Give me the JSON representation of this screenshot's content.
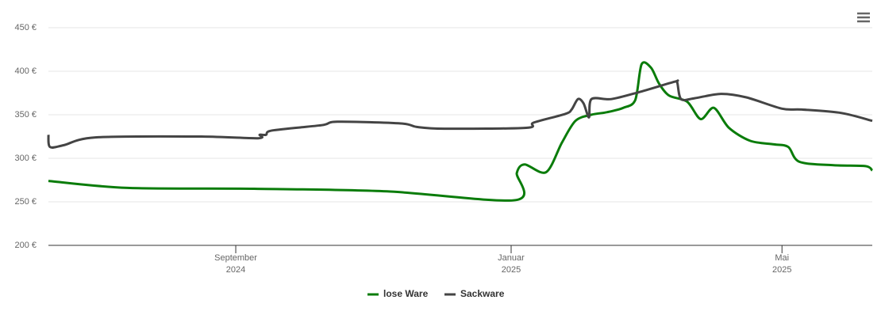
{
  "chart_data": {
    "type": "line",
    "xlim": [
      0,
      365
    ],
    "xticks": [
      {
        "value": 83,
        "label": "September\n2024"
      },
      {
        "value": 205,
        "label": "Januar\n2025"
      },
      {
        "value": 325,
        "label": "Mai\n2025"
      }
    ],
    "ylim": [
      200,
      450
    ],
    "yticks": [
      {
        "value": 200,
        "label": "200 €"
      },
      {
        "value": 250,
        "label": "250 €"
      },
      {
        "value": 300,
        "label": "300 €"
      },
      {
        "value": 350,
        "label": "350 €"
      },
      {
        "value": 400,
        "label": "400 €"
      },
      {
        "value": 450,
        "label": "450 €"
      }
    ],
    "grid": true,
    "legend": "bottom",
    "series": [
      {
        "name": "lose Ware",
        "color": "#0a7c0a",
        "x": [
          0,
          35,
          91,
          150,
          207,
          207.5,
          211,
          220.5,
          227.5,
          233.5,
          240.5,
          247.6,
          254.7,
          260,
          262.8,
          267,
          270.5,
          275,
          283,
          289,
          294.8,
          301.5,
          311,
          321.5,
          327.8,
          332.7,
          347.9,
          362,
          365
        ],
        "values": [
          274,
          266,
          265,
          262,
          252,
          283,
          293,
          284,
          318,
          343,
          350,
          353,
          358,
          367,
          408,
          404,
          386,
          372,
          365,
          345,
          358,
          335,
          320,
          316,
          313,
          296,
          292,
          291,
          286
        ]
      },
      {
        "name": "Sackware",
        "color": "#444444",
        "x": [
          0,
          0.7,
          6.7,
          20.8,
          66.5,
          92.9,
          93.6,
          96.4,
          99.2,
          121,
          128,
          156.2,
          163.2,
          175.5,
          211.7,
          215,
          229,
          231.8,
          234.6,
          237.1,
          239.5,
          240.6,
          249.4,
          261.7,
          277.5,
          278.6,
          280.3,
          286.3,
          297.9,
          309.2,
          325,
          333.8,
          351.4,
          365
        ],
        "values": [
          327,
          313,
          315,
          324,
          325,
          323,
          327,
          327,
          332,
          338,
          342,
          340,
          336,
          334,
          335,
          341,
          351,
          356,
          368,
          363,
          347,
          368,
          368,
          376,
          388,
          387,
          368,
          369,
          374,
          370,
          357,
          356,
          352,
          343
        ]
      }
    ]
  }
}
